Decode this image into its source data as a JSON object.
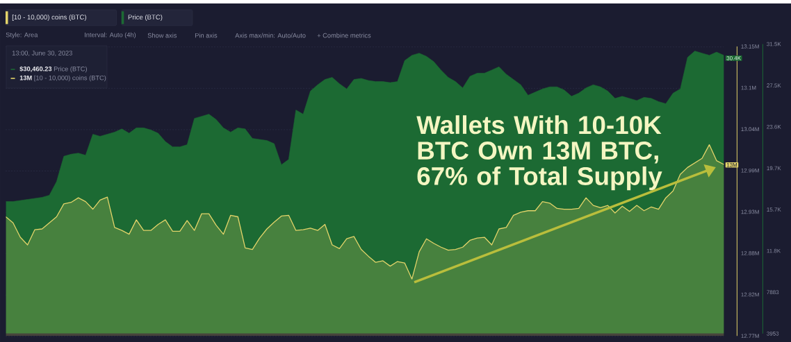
{
  "chart_data": {
    "type": "area",
    "categories": [
      null,
      null,
      null,
      null,
      null,
      null,
      null,
      null,
      null,
      null,
      null,
      null,
      null,
      null,
      null,
      null,
      null,
      null,
      null,
      null,
      null,
      null,
      null,
      null,
      null,
      null,
      null,
      null,
      null,
      null,
      null,
      null,
      null,
      null,
      null,
      null,
      null,
      null,
      null,
      null,
      null,
      null,
      null,
      null,
      null,
      null,
      null,
      null,
      null,
      null,
      null,
      null,
      null,
      null,
      null,
      null,
      null,
      null,
      null,
      null,
      null,
      null,
      null,
      null,
      null,
      null,
      null,
      null,
      null,
      null,
      null,
      null,
      null,
      null,
      null,
      null,
      null,
      null,
      null,
      null,
      null,
      null,
      null,
      null,
      null,
      null,
      null,
      null,
      null,
      null,
      null,
      null,
      null,
      null,
      null,
      null,
      null,
      null,
      null,
      null
    ],
    "series": [
      {
        "name": "[10 - 10,000) coins (BTC)",
        "color": "#e3d46a",
        "values": [
          12926000,
          12918000,
          12899000,
          12889000,
          12909000,
          12910000,
          12918000,
          12926000,
          12943000,
          12945000,
          12951000,
          12946000,
          12936000,
          12948000,
          12952000,
          12912000,
          12908000,
          12903000,
          12922000,
          12908000,
          12908000,
          12916000,
          12922000,
          12907000,
          12907000,
          12921000,
          12908000,
          12930000,
          12930000,
          12915000,
          12903000,
          12928000,
          12926000,
          12885000,
          12883000,
          12898000,
          12910000,
          12919000,
          12927000,
          12928000,
          12908000,
          12909000,
          12911000,
          12908000,
          12916000,
          12889000,
          12884000,
          12897000,
          12900000,
          12883000,
          12874000,
          12866000,
          12868000,
          12861000,
          12867000,
          12865000,
          12844000,
          12880000,
          12897000,
          12891000,
          12886000,
          12882000,
          12883000,
          12886000,
          12895000,
          12898000,
          12899000,
          12889000,
          12910000,
          12912000,
          12928000,
          12932000,
          12934000,
          12934000,
          12946000,
          12944000,
          12937000,
          12936000,
          12936000,
          12937000,
          12951000,
          12941000,
          12938000,
          12941000,
          12931000,
          12940000,
          12933000,
          12941000,
          12934000,
          12939000,
          12936000,
          12951000,
          12960000,
          12982000,
          12991000,
          12997000,
          13003000,
          13021000,
          13000000,
          12995000
        ],
        "value_labels": [
          null,
          null,
          null,
          null,
          null,
          null,
          null,
          null,
          null,
          null,
          null,
          null,
          null,
          null,
          null,
          null,
          null,
          null,
          null,
          null,
          null,
          null,
          null,
          null,
          null,
          null,
          null,
          null,
          null,
          null,
          null,
          null,
          null,
          null,
          null,
          null,
          null,
          null,
          null,
          null,
          null,
          null,
          null,
          null,
          null,
          null,
          null,
          null,
          null,
          null,
          null,
          null,
          null,
          null,
          null,
          null,
          null,
          null,
          null,
          null,
          null,
          null,
          null,
          null,
          null,
          null,
          null,
          null,
          null,
          null,
          null,
          null,
          null,
          null,
          null,
          null,
          null,
          null,
          null,
          null,
          null,
          null,
          null,
          null,
          null,
          null,
          null,
          null,
          null,
          null,
          null,
          null,
          null,
          null,
          null,
          null,
          null,
          null,
          null,
          "13M"
        ]
      },
      {
        "name": "Price (BTC)",
        "color": "#1c6a33",
        "axis": "y2",
        "values": [
          16500,
          16500,
          16600,
          16700,
          16800,
          16900,
          17100,
          18400,
          20800,
          21000,
          21100,
          20900,
          22900,
          22700,
          22900,
          23100,
          23400,
          23000,
          23500,
          23500,
          23300,
          23000,
          22200,
          21700,
          21700,
          21900,
          24400,
          24600,
          24800,
          24300,
          23500,
          23100,
          23500,
          23400,
          22500,
          22400,
          22300,
          22000,
          20000,
          20500,
          25200,
          24800,
          27000,
          27600,
          28100,
          28300,
          27700,
          27200,
          28100,
          28200,
          28000,
          27900,
          27900,
          27800,
          27900,
          29900,
          30400,
          30600,
          30300,
          29800,
          29000,
          28300,
          27900,
          27300,
          28400,
          28700,
          28700,
          29000,
          29300,
          28600,
          28100,
          27600,
          26600,
          26900,
          27200,
          27400,
          27400,
          27100,
          26500,
          26800,
          27300,
          27600,
          27400,
          27000,
          26300,
          26500,
          26300,
          26100,
          26400,
          26300,
          26000,
          25800,
          26800,
          27200,
          30200,
          30800,
          30600,
          30400,
          30700,
          30400
        ],
        "value_labels": [
          null,
          null,
          null,
          null,
          null,
          null,
          null,
          null,
          null,
          null,
          null,
          null,
          null,
          null,
          null,
          null,
          null,
          null,
          null,
          null,
          null,
          null,
          null,
          null,
          null,
          null,
          null,
          null,
          null,
          null,
          null,
          null,
          null,
          null,
          null,
          null,
          null,
          null,
          null,
          null,
          null,
          null,
          null,
          null,
          null,
          null,
          null,
          null,
          null,
          null,
          null,
          null,
          null,
          null,
          null,
          null,
          null,
          null,
          null,
          null,
          null,
          null,
          null,
          null,
          null,
          null,
          null,
          null,
          null,
          null,
          null,
          null,
          null,
          null,
          null,
          null,
          null,
          null,
          null,
          null,
          null,
          null,
          null,
          null,
          null,
          null,
          null,
          null,
          null,
          null,
          null,
          null,
          null,
          null,
          null,
          null,
          null,
          null,
          null,
          "30.4K"
        ]
      }
    ],
    "ylim": [
      12769000,
      13150500
    ],
    "yticks": [
      {
        "value": 12769000,
        "label": "12.77M"
      },
      {
        "value": 12823500,
        "label": "12.82M"
      },
      {
        "value": 12878000,
        "label": "12.88M"
      },
      {
        "value": 12932500,
        "label": "12.93M"
      },
      {
        "value": 12987000,
        "label": "12.99M"
      },
      {
        "value": 13041500,
        "label": "13.04M"
      },
      {
        "value": 13096000,
        "label": "13.1M"
      },
      {
        "value": 13150500,
        "label": "13.15M"
      }
    ],
    "y2lim": [
      3953,
      31463
    ],
    "y2ticks": [
      3953,
      7883,
      {
        "value": 11813,
        "label": "11.8K"
      },
      {
        "value": 15743,
        "label": "15.7K"
      },
      {
        "value": 19673,
        "label": "19.7K"
      },
      {
        "value": 23603,
        "label": "23.6K"
      },
      {
        "value": 27533,
        "label": "27.5K"
      },
      {
        "value": 31463,
        "label": "31.5K"
      }
    ],
    "grid": "y",
    "legend": "top left",
    "annotations": [
      "Wallets With 10-10K BTC Own 13M BTC, 67% of Total Supply",
      "Style: Area",
      "Interval: Auto (4h)",
      "Show axis",
      "Pin axis",
      "Axis max/min: Auto/Auto",
      "+ Combine metrics",
      "13:00, June 30, 2023",
      "**$30,460.23** Price (BTC)",
      "**13M** [10 - 10,000) coins (BTC)"
    ]
  }
}
